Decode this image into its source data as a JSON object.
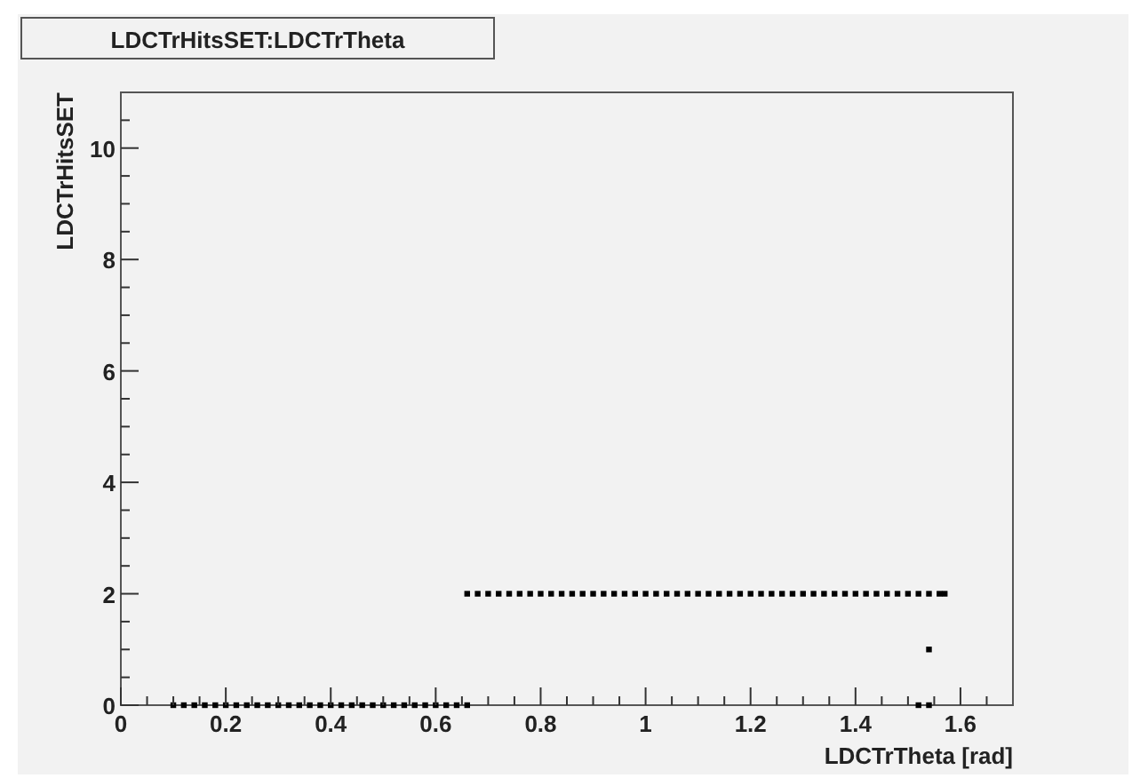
{
  "chart_data": {
    "type": "scatter",
    "title": "LDCTrHitsSET:LDCTrTheta",
    "xlabel": "LDCTrTheta [rad]",
    "ylabel": "LDCTrHitsSET",
    "marker": "square",
    "grid": false,
    "xlim": [
      0,
      1.7
    ],
    "ylim": [
      0,
      11
    ],
    "xticks": [
      0,
      {
        "value": 0.05,
        "label": null
      },
      {
        "value": 0.1,
        "label": null
      },
      {
        "value": 0.15,
        "label": null
      },
      0.2,
      {
        "value": 0.25,
        "label": null
      },
      {
        "value": 0.3,
        "label": null
      },
      {
        "value": 0.35,
        "label": null
      },
      0.4,
      {
        "value": 0.45,
        "label": null
      },
      {
        "value": 0.5,
        "label": null
      },
      {
        "value": 0.55,
        "label": null
      },
      0.6,
      {
        "value": 0.65,
        "label": null
      },
      {
        "value": 0.7,
        "label": null
      },
      {
        "value": 0.75,
        "label": null
      },
      0.8,
      {
        "value": 0.85,
        "label": null
      },
      {
        "value": 0.9,
        "label": null
      },
      {
        "value": 0.95,
        "label": null
      },
      1,
      {
        "value": 1.05,
        "label": null
      },
      {
        "value": 1.1,
        "label": null
      },
      {
        "value": 1.15,
        "label": null
      },
      1.2,
      {
        "value": 1.25,
        "label": null
      },
      {
        "value": 1.3,
        "label": null
      },
      {
        "value": 1.35,
        "label": null
      },
      1.4,
      {
        "value": 1.45,
        "label": null
      },
      {
        "value": 1.5,
        "label": null
      },
      {
        "value": 1.55,
        "label": null
      },
      1.6,
      {
        "value": 1.65,
        "label": null
      }
    ],
    "yticks": [
      0,
      {
        "value": 0.5,
        "label": null
      },
      {
        "value": 1,
        "label": null
      },
      {
        "value": 1.5,
        "label": null
      },
      2,
      {
        "value": 2.5,
        "label": null
      },
      {
        "value": 3,
        "label": null
      },
      {
        "value": 3.5,
        "label": null
      },
      4,
      {
        "value": 4.5,
        "label": null
      },
      {
        "value": 5,
        "label": null
      },
      {
        "value": 5.5,
        "label": null
      },
      6,
      {
        "value": 6.5,
        "label": null
      },
      {
        "value": 7,
        "label": null
      },
      {
        "value": 7.5,
        "label": null
      },
      8,
      {
        "value": 8.5,
        "label": null
      },
      {
        "value": 9,
        "label": null
      },
      {
        "value": 9.5,
        "label": null
      },
      10,
      {
        "value": 10.5,
        "label": null
      }
    ],
    "series": [
      {
        "color": "#000000",
        "x": [
          0.1,
          0.12,
          0.14,
          0.16,
          0.18,
          0.2,
          0.22,
          0.24,
          0.26,
          0.28,
          0.3,
          0.32,
          0.34,
          0.36,
          0.38,
          0.4,
          0.42,
          0.44,
          0.46,
          0.48,
          0.5,
          0.52,
          0.54,
          0.56,
          0.58,
          0.6,
          0.62,
          0.64,
          0.66,
          1.52,
          1.54,
          1.54,
          0.66,
          0.68,
          0.7,
          0.72,
          0.74,
          0.76,
          0.78,
          0.8,
          0.82,
          0.84,
          0.86,
          0.88,
          0.9,
          0.92,
          0.94,
          0.96,
          0.98,
          1.0,
          1.02,
          1.04,
          1.06,
          1.08,
          1.1,
          1.12,
          1.14,
          1.16,
          1.18,
          1.2,
          1.22,
          1.24,
          1.26,
          1.28,
          1.3,
          1.32,
          1.34,
          1.36,
          1.38,
          1.4,
          1.42,
          1.44,
          1.46,
          1.48,
          1.5,
          1.52,
          1.54,
          1.56,
          1.57
        ],
        "values": [
          0,
          0,
          0,
          0,
          0,
          0,
          0,
          0,
          0,
          0,
          0,
          0,
          0,
          0,
          0,
          0,
          0,
          0,
          0,
          0,
          0,
          0,
          0,
          0,
          0,
          0,
          0,
          0,
          0,
          0,
          0,
          1,
          2,
          2,
          2,
          2,
          2,
          2,
          2,
          2,
          2,
          2,
          2,
          2,
          2,
          2,
          2,
          2,
          2,
          2,
          2,
          2,
          2,
          2,
          2,
          2,
          2,
          2,
          2,
          2,
          2,
          2,
          2,
          2,
          2,
          2,
          2,
          2,
          2,
          2,
          2,
          2,
          2,
          2,
          2,
          2,
          2,
          2,
          2
        ]
      }
    ]
  }
}
